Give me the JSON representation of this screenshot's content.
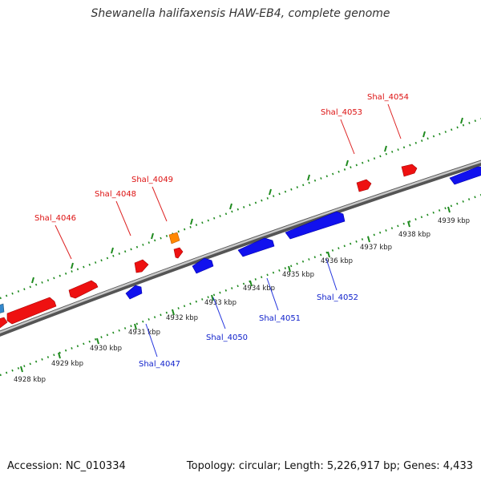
{
  "header": {
    "title": "Shewanella halifaxensis HAW-EB4, complete genome"
  },
  "footer": {
    "accession": "Accession: NC_010334",
    "topology": "Topology: circular; Length: 5,226,917 bp; Genes: 4,433"
  },
  "ruler": {
    "unit": "kbp",
    "ticks": [
      {
        "label": "4928 kbp"
      },
      {
        "label": "4929 kbp"
      },
      {
        "label": "4930 kbp"
      },
      {
        "label": "4931 kbp"
      },
      {
        "label": "4932 kbp"
      },
      {
        "label": "4933 kbp"
      },
      {
        "label": "4934 kbp"
      },
      {
        "label": "4935 kbp"
      },
      {
        "label": "4936 kbp"
      },
      {
        "label": "4937 kbp"
      },
      {
        "label": "4938 kbp"
      },
      {
        "label": "4939 kbp"
      }
    ]
  },
  "genes": {
    "forward_color": "#ee1111",
    "reverse_color": "#1111ee",
    "highlight_color": "#ff8800",
    "other_color": "#3388cc",
    "forward_labels": [
      "Shal_4046",
      "Shal_4048",
      "Shal_4049",
      "Shal_4053",
      "Shal_4054"
    ],
    "reverse_labels": [
      "Shal_4047",
      "Shal_4050",
      "Shal_4051",
      "Shal_4052"
    ]
  }
}
